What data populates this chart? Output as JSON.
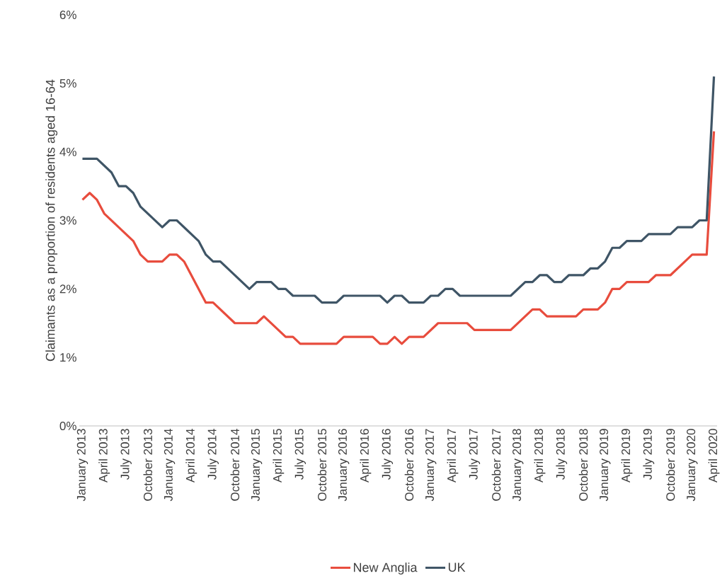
{
  "chart_data": {
    "type": "line",
    "ylabel": "Claimants as a proportion of residents aged 16-64",
    "categories": [
      "January 2013",
      null,
      null,
      "April 2013",
      null,
      null,
      "July 2013",
      null,
      null,
      "October 2013",
      null,
      null,
      "January 2014",
      null,
      null,
      "April 2014",
      null,
      null,
      "July 2014",
      null,
      null,
      "October 2014",
      null,
      null,
      "January 2015",
      null,
      null,
      "April 2015",
      null,
      null,
      "July 2015",
      null,
      null,
      "October 2015",
      null,
      null,
      "January 2016",
      null,
      null,
      "April 2016",
      null,
      null,
      "July 2016",
      null,
      null,
      "October 2016",
      null,
      null,
      "January 2017",
      null,
      null,
      "April 2017",
      null,
      null,
      "July 2017",
      null,
      null,
      "October 2017",
      null,
      null,
      "January 2018",
      null,
      null,
      "April 2018",
      null,
      null,
      "July 2018",
      null,
      null,
      "October 2018",
      null,
      null,
      "January 2019",
      null,
      null,
      "April 2019",
      null,
      null,
      "July 2019",
      null,
      null,
      "October 2019",
      null,
      null,
      "January 2020",
      null,
      null,
      "April 2020"
    ],
    "series": [
      {
        "name": "New Anglia",
        "color": "#e84c3d",
        "values": [
          3.3,
          3.4,
          3.3,
          3.1,
          3.0,
          2.9,
          2.8,
          2.7,
          2.5,
          2.4,
          2.4,
          2.4,
          2.5,
          2.5,
          2.4,
          2.2,
          2.0,
          1.8,
          1.8,
          1.7,
          1.6,
          1.5,
          1.5,
          1.5,
          1.5,
          1.6,
          1.5,
          1.4,
          1.3,
          1.3,
          1.2,
          1.2,
          1.2,
          1.2,
          1.2,
          1.2,
          1.3,
          1.3,
          1.3,
          1.3,
          1.3,
          1.2,
          1.2,
          1.3,
          1.2,
          1.3,
          1.3,
          1.3,
          1.4,
          1.5,
          1.5,
          1.5,
          1.5,
          1.5,
          1.4,
          1.4,
          1.4,
          1.4,
          1.4,
          1.4,
          1.5,
          1.6,
          1.7,
          1.7,
          1.6,
          1.6,
          1.6,
          1.6,
          1.6,
          1.7,
          1.7,
          1.7,
          1.8,
          2.0,
          2.0,
          2.1,
          2.1,
          2.1,
          2.1,
          2.2,
          2.2,
          2.2,
          2.3,
          2.4,
          2.5,
          2.5,
          2.5,
          4.3
        ]
      },
      {
        "name": "UK",
        "color": "#3f5566",
        "values": [
          3.9,
          3.9,
          3.9,
          3.8,
          3.7,
          3.5,
          3.5,
          3.4,
          3.2,
          3.1,
          3.0,
          2.9,
          3.0,
          3.0,
          2.9,
          2.8,
          2.7,
          2.5,
          2.4,
          2.4,
          2.3,
          2.2,
          2.1,
          2.0,
          2.1,
          2.1,
          2.1,
          2.0,
          2.0,
          1.9,
          1.9,
          1.9,
          1.9,
          1.8,
          1.8,
          1.8,
          1.9,
          1.9,
          1.9,
          1.9,
          1.9,
          1.9,
          1.8,
          1.9,
          1.9,
          1.8,
          1.8,
          1.8,
          1.9,
          1.9,
          2.0,
          2.0,
          1.9,
          1.9,
          1.9,
          1.9,
          1.9,
          1.9,
          1.9,
          1.9,
          2.0,
          2.1,
          2.1,
          2.2,
          2.2,
          2.1,
          2.1,
          2.2,
          2.2,
          2.2,
          2.3,
          2.3,
          2.4,
          2.6,
          2.6,
          2.7,
          2.7,
          2.7,
          2.8,
          2.8,
          2.8,
          2.8,
          2.9,
          2.9,
          2.9,
          3.0,
          3.0,
          5.1
        ]
      }
    ],
    "ylim": [
      0,
      6
    ],
    "yticks": [
      {
        "value": 0,
        "label": "0%"
      },
      {
        "value": 1,
        "label": "1%"
      },
      {
        "value": 2,
        "label": "2%"
      },
      {
        "value": 3,
        "label": "3%"
      },
      {
        "value": 4,
        "label": "4%"
      },
      {
        "value": 5,
        "label": "5%"
      },
      {
        "value": 6,
        "label": "6%"
      }
    ],
    "legend": "bottom"
  }
}
